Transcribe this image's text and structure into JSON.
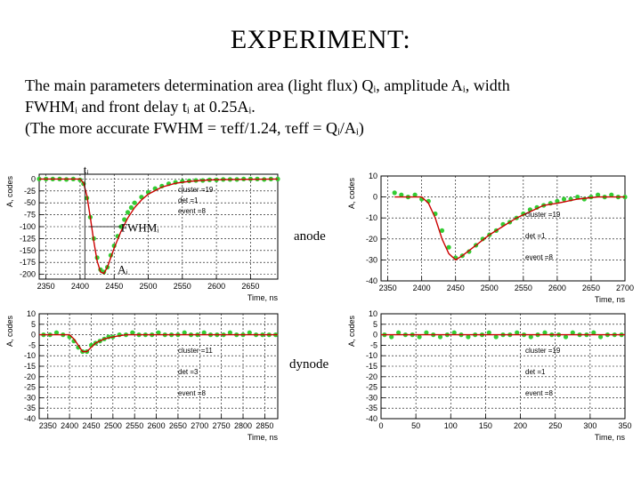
{
  "slide": {
    "title": "EXPERIMENT:",
    "line1": "The main parameters determination    area (light flux) Qᵢ, amplitude Aᵢ, width",
    "line2": "FWHMᵢ and front delay tᵢ at 0.25Aᵢ.",
    "line3": "(The more accurate FWHM = τeff/1.24, τeff = Qᵢ/Aᵢ)",
    "label_anode": "anode",
    "label_dynode": "dynode"
  },
  "colors": {
    "data": "#33cc33",
    "fit": "#cc0000",
    "grid": "#000000"
  },
  "chart_data": [
    {
      "id": "anode-left",
      "type": "scatter",
      "xlabel": "Time, ns",
      "ylabel": "A, codes",
      "xlim": [
        2340,
        2690
      ],
      "ylim": [
        -210,
        10
      ],
      "xticks": [
        2350,
        2400,
        2450,
        2500,
        2550,
        2600,
        2650
      ],
      "yticks": [
        0,
        -25,
        -50,
        -75,
        -100,
        -125,
        -150,
        -175,
        -200
      ],
      "grid": true,
      "legend_text": [
        "cluster =19",
        "det =1",
        "event =8"
      ],
      "annotations": [
        {
          "text": "tᵢ",
          "x": 2405,
          "y": 12
        },
        {
          "text": "FWHMᵢ",
          "x": 2460,
          "y": -110
        },
        {
          "text": "Aᵢ",
          "x": 2455,
          "y": -198
        }
      ],
      "series": [
        {
          "kind": "points",
          "x": [
            2340,
            2350,
            2360,
            2370,
            2380,
            2390,
            2400,
            2405,
            2410,
            2415,
            2420,
            2425,
            2430,
            2435,
            2440,
            2445,
            2450,
            2455,
            2460,
            2465,
            2470,
            2475,
            2480,
            2490,
            2500,
            2510,
            2520,
            2530,
            2540,
            2550,
            2560,
            2570,
            2580,
            2590,
            2600,
            2610,
            2620,
            2630,
            2640,
            2650,
            2660,
            2670,
            2680,
            2690
          ],
          "y": [
            0,
            0,
            0,
            0,
            -1,
            0,
            -2,
            -10,
            -40,
            -80,
            -125,
            -165,
            -190,
            -195,
            -185,
            -160,
            -140,
            -120,
            -100,
            -85,
            -70,
            -60,
            -50,
            -38,
            -28,
            -20,
            -15,
            -10,
            -7,
            -5,
            -4,
            -3,
            -3,
            -2,
            -2,
            -1,
            -1,
            -1,
            0,
            0,
            0,
            -1,
            0,
            0
          ]
        },
        {
          "kind": "fit",
          "x": [
            2340,
            2400,
            2405,
            2410,
            2415,
            2420,
            2425,
            2430,
            2435,
            2440,
            2445,
            2450,
            2460,
            2470,
            2480,
            2490,
            2500,
            2520,
            2540,
            2560,
            2590,
            2620,
            2690
          ],
          "y": [
            0,
            0,
            -8,
            -35,
            -80,
            -130,
            -172,
            -195,
            -198,
            -185,
            -165,
            -145,
            -110,
            -82,
            -60,
            -44,
            -32,
            -17,
            -9,
            -5,
            -2,
            -1,
            0
          ]
        }
      ]
    },
    {
      "id": "anode-right",
      "type": "scatter",
      "xlabel": "Time, ns",
      "ylabel": "A, codes",
      "xlim": [
        2340,
        2700
      ],
      "ylim": [
        -40,
        10
      ],
      "xticks": [
        2350,
        2400,
        2450,
        2500,
        2550,
        2600,
        2650,
        2700
      ],
      "yticks": [
        10,
        0,
        -10,
        -20,
        -30,
        -40
      ],
      "grid": true,
      "legend_text": [
        "cluster =19",
        "det =1",
        "event =8"
      ],
      "series": [
        {
          "kind": "points",
          "x": [
            2360,
            2370,
            2380,
            2390,
            2400,
            2410,
            2420,
            2430,
            2440,
            2450,
            2460,
            2470,
            2480,
            2490,
            2500,
            2510,
            2520,
            2530,
            2540,
            2550,
            2560,
            2570,
            2580,
            2590,
            2600,
            2610,
            2620,
            2630,
            2640,
            2650,
            2660,
            2670,
            2680,
            2690,
            2700
          ],
          "y": [
            2,
            1,
            0,
            1,
            -1,
            -2,
            -8,
            -16,
            -24,
            -29,
            -28,
            -26,
            -23,
            -20,
            -18,
            -16,
            -13,
            -12,
            -10,
            -8,
            -6,
            -5,
            -4,
            -3,
            -2,
            -1,
            -1,
            0,
            -1,
            0,
            1,
            0,
            1,
            0,
            0
          ]
        },
        {
          "kind": "fit",
          "x": [
            2360,
            2400,
            2410,
            2420,
            2430,
            2440,
            2450,
            2460,
            2480,
            2500,
            2520,
            2540,
            2560,
            2580,
            2600,
            2630,
            2660,
            2700
          ],
          "y": [
            0,
            0,
            -3,
            -10,
            -20,
            -27,
            -30,
            -28,
            -23,
            -18,
            -14,
            -10,
            -7,
            -4,
            -3,
            -1,
            0,
            0
          ]
        }
      ]
    },
    {
      "id": "dynode-left",
      "type": "scatter",
      "xlabel": "Time, ns",
      "ylabel": "A, codes",
      "xlim": [
        2330,
        2880
      ],
      "ylim": [
        -40,
        10
      ],
      "xticks": [
        2350,
        2400,
        2450,
        2500,
        2550,
        2600,
        2650,
        2700,
        2750,
        2800,
        2850
      ],
      "yticks": [
        10,
        5,
        0,
        -5,
        -10,
        -15,
        -20,
        -25,
        -30,
        -35,
        -40
      ],
      "grid": true,
      "legend_text": [
        "cluster =11",
        "det =3",
        "event =8"
      ],
      "series": [
        {
          "kind": "points",
          "x": [
            2340,
            2355,
            2370,
            2385,
            2400,
            2410,
            2420,
            2430,
            2440,
            2450,
            2460,
            2470,
            2480,
            2490,
            2500,
            2515,
            2530,
            2545,
            2560,
            2575,
            2590,
            2605,
            2620,
            2635,
            2650,
            2665,
            2680,
            2695,
            2710,
            2725,
            2740,
            2755,
            2770,
            2785,
            2800,
            2815,
            2830,
            2845,
            2860,
            2875
          ],
          "y": [
            0,
            0,
            1,
            0,
            -1,
            -3,
            -6,
            -8,
            -8,
            -5,
            -4,
            -3,
            -2,
            -1,
            -1,
            0,
            0,
            1,
            0,
            0,
            0,
            1,
            0,
            0,
            0,
            1,
            0,
            0,
            1,
            0,
            0,
            0,
            1,
            0,
            0,
            1,
            0,
            0,
            0,
            0
          ]
        },
        {
          "kind": "fit",
          "x": [
            2330,
            2400,
            2410,
            2420,
            2430,
            2440,
            2450,
            2460,
            2480,
            2500,
            2530,
            2570,
            2620,
            2880
          ],
          "y": [
            0,
            0,
            -2,
            -5,
            -8,
            -8,
            -6,
            -4,
            -2,
            -1,
            0,
            0,
            0,
            0
          ]
        }
      ]
    },
    {
      "id": "dynode-right",
      "type": "scatter",
      "xlabel": "Time, ns",
      "ylabel": "A, codes",
      "xlim": [
        0,
        350
      ],
      "ylim": [
        -40,
        10
      ],
      "xticks": [
        0,
        50,
        100,
        150,
        200,
        250,
        300,
        350
      ],
      "yticks": [
        10,
        5,
        0,
        -5,
        -10,
        -15,
        -20,
        -25,
        -30,
        -35,
        -40
      ],
      "grid": true,
      "legend_text": [
        "cluster =19",
        "det =1",
        "event =8"
      ],
      "series": [
        {
          "kind": "points",
          "x": [
            5,
            15,
            25,
            35,
            45,
            55,
            65,
            75,
            85,
            95,
            105,
            115,
            125,
            135,
            145,
            155,
            165,
            175,
            185,
            195,
            205,
            215,
            225,
            235,
            245,
            255,
            265,
            275,
            285,
            295,
            305,
            315,
            325,
            335,
            345
          ],
          "y": [
            0,
            -1,
            1,
            0,
            0,
            -1,
            1,
            0,
            -1,
            0,
            1,
            0,
            -1,
            0,
            0,
            1,
            -1,
            0,
            0,
            1,
            0,
            -1,
            0,
            1,
            0,
            0,
            -1,
            1,
            0,
            0,
            1,
            -1,
            0,
            0,
            0
          ]
        },
        {
          "kind": "fit",
          "x": [
            0,
            350
          ],
          "y": [
            0,
            0
          ]
        }
      ]
    }
  ]
}
